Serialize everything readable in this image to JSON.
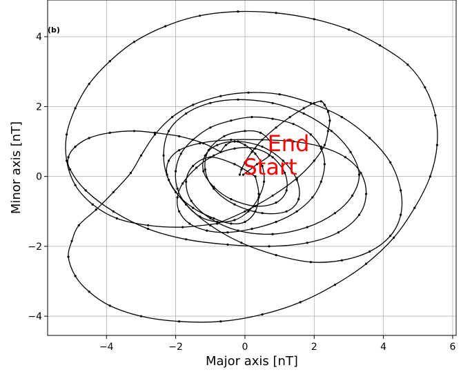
{
  "chart_data": {
    "type": "line",
    "panel_label": "(b)",
    "xlabel": "Major axis [nT]",
    "ylabel": "Minor axis [nT]",
    "xlim": [
      -5.7,
      6.1
    ],
    "ylim": [
      -4.55,
      5.05
    ],
    "xticks": [
      -4,
      -2,
      0,
      2,
      4,
      6
    ],
    "yticks": [
      -4,
      -2,
      0,
      2,
      4
    ],
    "grid": true,
    "line_color": "#000000",
    "annotation_color": "#ff0000",
    "annotations": [
      {
        "text": "End",
        "x": 0.65,
        "y": 0.72
      },
      {
        "text": "Start",
        "x": -0.05,
        "y": 0.05
      }
    ],
    "series": [
      {
        "x": [
          -0.05,
          0.35,
          0.7,
          0.75,
          0.45,
          0.0,
          -0.6,
          -1.05,
          -1.15,
          -0.9,
          -0.3,
          0.5,
          1.2,
          1.55,
          1.5,
          1.1,
          0.5,
          -0.2,
          -0.8,
          -1.15,
          -1.2,
          -0.9,
          -0.4,
          0.3,
          0.9,
          1.2,
          1.15,
          0.8,
          0.3,
          -0.3,
          -0.9,
          -1.4,
          -1.8,
          -1.95,
          -1.9,
          -1.6,
          -1.1,
          -0.5,
          0.2,
          0.9,
          1.5,
          1.95,
          2.2,
          2.3,
          2.2,
          1.9,
          1.4,
          0.8,
          0.2,
          -0.4,
          -1.0,
          -1.5,
          -1.85,
          -2.0,
          -1.95,
          -1.7,
          -1.3,
          -0.8,
          -0.3,
          0.1,
          0.4,
          0.55,
          0.5,
          0.3,
          0.0,
          -0.3,
          -0.55,
          -0.7
        ],
        "y": [
          0.05,
          0.35,
          0.6,
          0.95,
          1.25,
          1.3,
          1.15,
          0.75,
          0.2,
          -0.35,
          -0.8,
          -1.05,
          -1.0,
          -0.65,
          -0.1,
          0.45,
          0.85,
          1.0,
          0.9,
          0.6,
          0.15,
          -0.3,
          -0.65,
          -0.85,
          -0.75,
          -0.4,
          0.1,
          0.55,
          0.8,
          0.8,
          0.6,
          0.25,
          -0.2,
          -0.6,
          -1.0,
          -1.35,
          -1.55,
          -1.6,
          -1.5,
          -1.3,
          -1.0,
          -0.6,
          -0.15,
          0.35,
          0.8,
          1.2,
          1.5,
          1.65,
          1.7,
          1.6,
          1.4,
          1.05,
          0.65,
          0.15,
          -0.35,
          -0.8,
          -1.15,
          -1.3,
          -1.25,
          -1.0,
          -0.6,
          -0.15,
          0.3,
          0.65,
          0.9,
          1.0,
          0.9,
          0.7
        ]
      },
      {
        "x": [
          -0.7,
          -1.2,
          -1.9,
          -2.6,
          -3.2,
          -3.9,
          -4.5,
          -4.9,
          -5.1,
          -5.05,
          -4.6,
          -3.8,
          -2.8,
          -1.7,
          -0.5,
          0.7,
          1.8,
          2.7,
          3.3,
          3.5,
          3.35,
          2.9,
          2.2,
          1.4,
          0.5,
          -0.4,
          -1.3,
          -1.9,
          -2.2,
          -2.25,
          -2.0,
          -1.5,
          -0.9,
          -0.4,
          0.0,
          0.3,
          0.4,
          0.3
        ],
        "y": [
          0.7,
          0.95,
          1.15,
          1.25,
          1.3,
          1.25,
          1.1,
          0.85,
          0.55,
          0.2,
          -0.4,
          -1.0,
          -1.5,
          -1.8,
          -1.95,
          -2.0,
          -1.9,
          -1.6,
          -1.1,
          -0.5,
          0.1,
          0.55,
          0.85,
          1.0,
          1.05,
          1.05,
          0.95,
          0.75,
          0.45,
          0.05,
          -0.45,
          -0.9,
          -1.2,
          -1.35,
          -1.3,
          -1.0,
          -0.5,
          0.0
        ]
      },
      {
        "x": [
          0.3,
          -0.3,
          -1.0,
          -1.5,
          -1.7,
          -1.55,
          -1.0,
          -0.2,
          0.8,
          1.8,
          2.6,
          3.1,
          3.3,
          3.05,
          2.5,
          1.7,
          0.8,
          -0.2,
          -1.0,
          -1.7,
          -2.2,
          -2.35,
          -2.2,
          -1.7,
          -1.0,
          -0.1,
          0.9,
          1.9,
          2.8,
          3.6,
          4.2,
          4.5,
          4.5,
          4.2,
          3.6,
          2.8,
          1.9,
          1.0,
          0.1,
          -0.7,
          -1.5,
          -2.1,
          -2.6,
          -3.0,
          -3.3,
          -3.8,
          -4.3,
          -4.8,
          -5.0,
          -5.1,
          -4.9,
          -4.5,
          -3.9,
          -3.0,
          -1.9,
          -0.7,
          0.5,
          1.6,
          2.6,
          3.5,
          4.3,
          4.9,
          5.35,
          5.55,
          5.5,
          5.2,
          4.7,
          3.9,
          3.0,
          2.0,
          0.9,
          -0.2,
          -1.3,
          -2.3,
          -3.2,
          -3.9,
          -4.5,
          -4.9,
          -5.15,
          -5.15,
          -4.9,
          -4.4,
          -3.7,
          -2.8,
          -1.8,
          -0.8
        ],
        "y": [
          0.0,
          0.35,
          0.55,
          0.3,
          -0.15,
          -0.7,
          -1.2,
          -1.55,
          -1.65,
          -1.45,
          -1.05,
          -0.55,
          0.05,
          0.7,
          1.3,
          1.8,
          2.1,
          2.2,
          2.1,
          1.8,
          1.3,
          0.6,
          -0.1,
          -0.8,
          -1.4,
          -1.9,
          -2.25,
          -2.45,
          -2.4,
          -2.15,
          -1.7,
          -1.1,
          -0.4,
          0.4,
          1.1,
          1.7,
          2.1,
          2.35,
          2.4,
          2.3,
          2.05,
          1.7,
          1.2,
          0.6,
          0.1,
          -0.45,
          -0.95,
          -1.4,
          -1.85,
          -2.3,
          -2.85,
          -3.3,
          -3.7,
          -4.0,
          -4.15,
          -4.15,
          -3.95,
          -3.6,
          -3.1,
          -2.5,
          -1.75,
          -0.9,
          0.0,
          0.9,
          1.75,
          2.55,
          3.2,
          3.75,
          4.2,
          4.5,
          4.68,
          4.72,
          4.6,
          4.3,
          3.85,
          3.3,
          2.65,
          1.95,
          1.2,
          0.45,
          -0.25,
          -0.8,
          -1.2,
          -1.4,
          -1.45,
          -1.35
        ]
      },
      {
        "x": [
          -0.8,
          0.0,
          0.8,
          1.5,
          2.0,
          2.3,
          2.4,
          2.45,
          2.4,
          2.3,
          2.2,
          2.0,
          1.7,
          1.3,
          0.9,
          0.5,
          0.2,
          0.0,
          -0.1,
          -0.15
        ],
        "y": [
          -1.35,
          -1.0,
          -0.55,
          -0.05,
          0.45,
          0.9,
          1.3,
          1.6,
          1.85,
          2.05,
          2.15,
          2.1,
          1.95,
          1.7,
          1.4,
          1.05,
          0.7,
          0.4,
          0.2,
          0.05
        ]
      }
    ]
  }
}
